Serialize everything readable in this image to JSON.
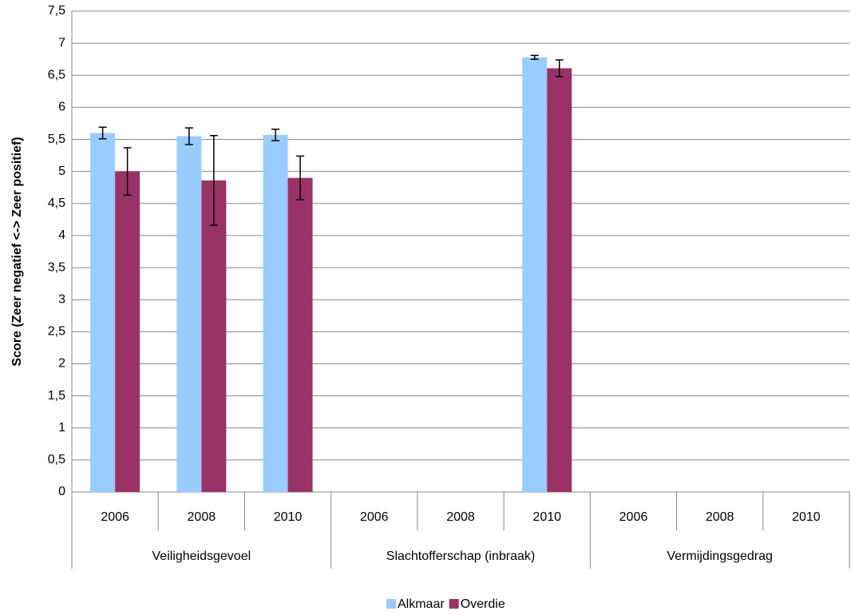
{
  "chart_data": {
    "type": "bar",
    "y_label": "Score (Zeer negatief <-> Zeer positief)",
    "groups": [
      {
        "name": "Veiligheidsgevoel",
        "categories": [
          "2006",
          "2008",
          "2010"
        ]
      },
      {
        "name": "Slachtofferschap (inbraak)",
        "categories": [
          "2006",
          "2008",
          "2010"
        ]
      },
      {
        "name": "Vermijdingsgedrag",
        "categories": [
          "2006",
          "2008",
          "2010"
        ]
      }
    ],
    "series": [
      {
        "name": "Alkmaar",
        "color": "#99ccff",
        "values": [
          5.6,
          5.55,
          5.57,
          null,
          null,
          6.78,
          null,
          null,
          null
        ],
        "errors": [
          0.09,
          0.13,
          0.09,
          null,
          null,
          0.03,
          null,
          null,
          null
        ]
      },
      {
        "name": "Overdie",
        "color": "#993366",
        "values": [
          5.0,
          4.86,
          4.9,
          null,
          null,
          6.61,
          null,
          null,
          null
        ],
        "errors": [
          0.37,
          0.7,
          0.34,
          null,
          null,
          0.13,
          null,
          null,
          null
        ]
      }
    ],
    "ylim": [
      0,
      7.5
    ],
    "yticks": [
      0,
      {
        "value": 0.5,
        "label": "0,5"
      },
      1,
      {
        "value": 1.5,
        "label": "1,5"
      },
      2,
      {
        "value": 2.5,
        "label": "2,5"
      },
      3,
      {
        "value": 3.5,
        "label": "3,5"
      },
      4,
      {
        "value": 4.5,
        "label": "4,5"
      },
      5,
      {
        "value": 5.5,
        "label": "5,5"
      },
      6,
      {
        "value": 6.5,
        "label": "6,5"
      },
      7,
      {
        "value": 7.5,
        "label": "7,5"
      }
    ],
    "grid": true,
    "legend": "bottom"
  }
}
